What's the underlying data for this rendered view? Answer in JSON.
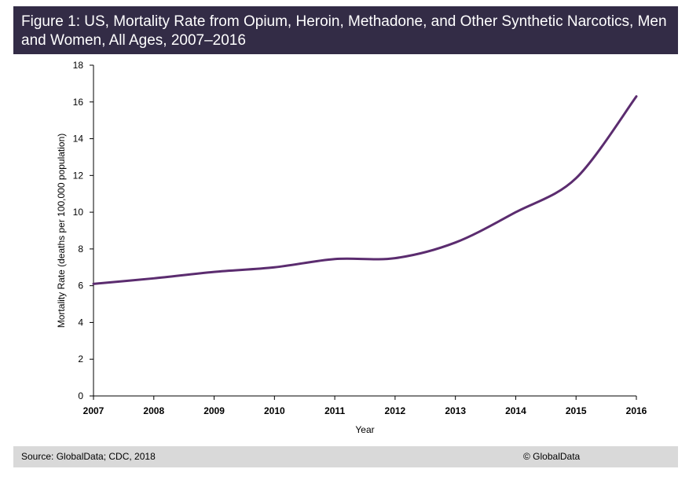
{
  "header": {
    "title": "Figure 1: US, Mortality Rate from Opium, Heroin, Methadone, and Other Synthetic Narcotics, Men and Women, All Ages, 2007–2016"
  },
  "footer": {
    "source": "Source: GlobalData; CDC, 2018",
    "copyright": "© GlobalData"
  },
  "colors": {
    "title_bg": "#332c46",
    "line": "#5b2c6f",
    "footer_bg": "#d9d9d9",
    "axis": "#000000"
  },
  "chart_data": {
    "type": "line",
    "title": "Figure 1: US, Mortality Rate from Opium, Heroin, Methadone, and Other Synthetic Narcotics, Men and Women, All Ages, 2007–2016",
    "xlabel": "Year",
    "ylabel": "Mortality Rate (deaths per 100,000 population)",
    "x": [
      "2007",
      "2008",
      "2009",
      "2010",
      "2011",
      "2012",
      "2013",
      "2014",
      "2015",
      "2016"
    ],
    "series": [
      {
        "values": [
          6.1,
          6.4,
          6.75,
          7.0,
          7.45,
          7.5,
          8.35,
          10.0,
          11.85,
          16.3
        ]
      }
    ],
    "ylim": [
      0,
      18
    ],
    "yticks": [
      0,
      2,
      4,
      6,
      8,
      10,
      12,
      14,
      16,
      18
    ],
    "grid": false,
    "legend": "none"
  }
}
